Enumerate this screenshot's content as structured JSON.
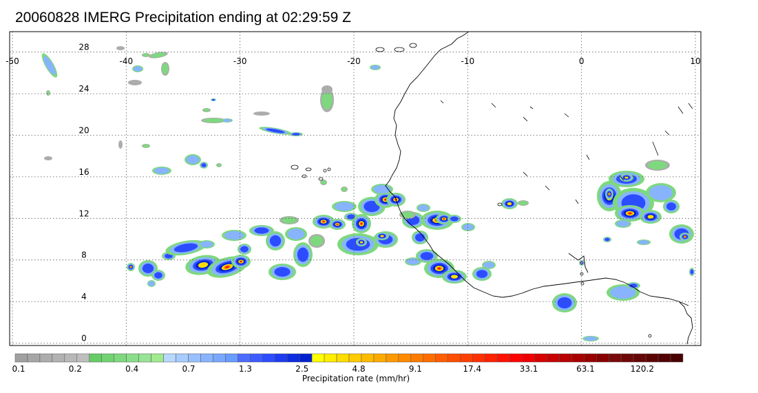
{
  "title": "20060828 IMERG Precipitation ending at 02:29:59 Z",
  "map": {
    "lon_range": [
      -50,
      10
    ],
    "lat_range": [
      -1,
      31.5
    ],
    "lon_ticks": [
      "-50",
      "-40",
      "-30",
      "-20",
      "-10",
      "0",
      "10"
    ],
    "lat_ticks": [
      "0",
      "4",
      "8",
      "12",
      "16",
      "20",
      "24",
      "28"
    ],
    "gridlines": true,
    "grid_style": "dotted",
    "coastline_color": "#000000"
  },
  "colorbar": {
    "label": "Precipitation rate (mm/hr)",
    "tick_labels": [
      "0.1",
      "0.2",
      "0.4",
      "0.7",
      "1.3",
      "2.5",
      "4.8",
      "9.1",
      "17.4",
      "33.1",
      "63.1",
      "120.2"
    ],
    "colors": [
      "#a0a0a0",
      "#a6a6a6",
      "#acacac",
      "#b2b2b2",
      "#b8b8b8",
      "#bebebe",
      "#66cc66",
      "#72d272",
      "#7ed87e",
      "#8ade8a",
      "#96e496",
      "#a2ea8e",
      "#b8d8ff",
      "#a8ccff",
      "#98c0ff",
      "#88b4ff",
      "#78a8ff",
      "#689cff",
      "#4c6cff",
      "#3c5cff",
      "#2c4cff",
      "#1c3cf0",
      "#0c2ce0",
      "#0020d0",
      "#ffff00",
      "#ffee00",
      "#ffdd00",
      "#ffcc00",
      "#ffbb00",
      "#ffaa00",
      "#ff9900",
      "#ff8a00",
      "#ff7b00",
      "#ff6c00",
      "#ff5d00",
      "#ff4e00",
      "#ff3f00",
      "#ff3000",
      "#ff2100",
      "#ff1200",
      "#ff0300",
      "#f00000",
      "#d80000",
      "#c80000",
      "#b80000",
      "#a80000",
      "#980000",
      "#880000",
      "#7a0a0a",
      "#700808",
      "#660606",
      "#5c0404",
      "#520202",
      "#480000"
    ]
  }
}
